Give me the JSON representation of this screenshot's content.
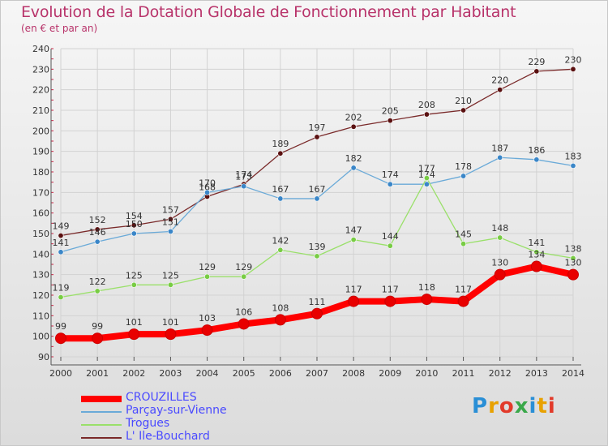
{
  "header": {
    "title": "Evolution de la Dotation Globale de Fonctionnement par Habitant",
    "subtitle": "(en € et par an)"
  },
  "logo": {
    "text": "Proxiti",
    "colors": [
      "#2a8fd6",
      "#e8a100",
      "#e23a2a",
      "#3aa84a"
    ]
  },
  "chart_data": {
    "type": "line",
    "x": [
      2000,
      2001,
      2002,
      2003,
      2004,
      2005,
      2006,
      2007,
      2008,
      2009,
      2010,
      2011,
      2012,
      2013,
      2014
    ],
    "ylim": [
      90,
      240
    ],
    "yticks": [
      90,
      100,
      110,
      120,
      130,
      140,
      150,
      160,
      170,
      180,
      190,
      200,
      210,
      220,
      230,
      240
    ],
    "grid": true,
    "legend_position": "bottom-left",
    "series": [
      {
        "name": "L' Ile-Bouchard",
        "color": "#7a2a2a",
        "dot": "#5a1010",
        "values": [
          149,
          152,
          154,
          157,
          168,
          174,
          189,
          197,
          202,
          205,
          208,
          210,
          220,
          229,
          230
        ]
      },
      {
        "name": "Parçay-sur-Vienne",
        "color": "#6aaad8",
        "dot": "#3a86c8",
        "values": [
          141,
          146,
          150,
          151,
          170,
          173,
          167,
          167,
          182,
          174,
          174,
          178,
          187,
          186,
          183
        ]
      },
      {
        "name": "Trogues",
        "color": "#9ae06a",
        "dot": "#78cc44",
        "values": [
          119,
          122,
          125,
          125,
          129,
          129,
          142,
          139,
          147,
          144,
          177,
          145,
          148,
          141,
          138
        ]
      },
      {
        "name": "CROUZILLES",
        "color": "#ff0000",
        "dot": "#e80000",
        "values": [
          99,
          99,
          101,
          101,
          103,
          106,
          108,
          111,
          117,
          117,
          118,
          117,
          130,
          134,
          130
        ]
      }
    ]
  }
}
